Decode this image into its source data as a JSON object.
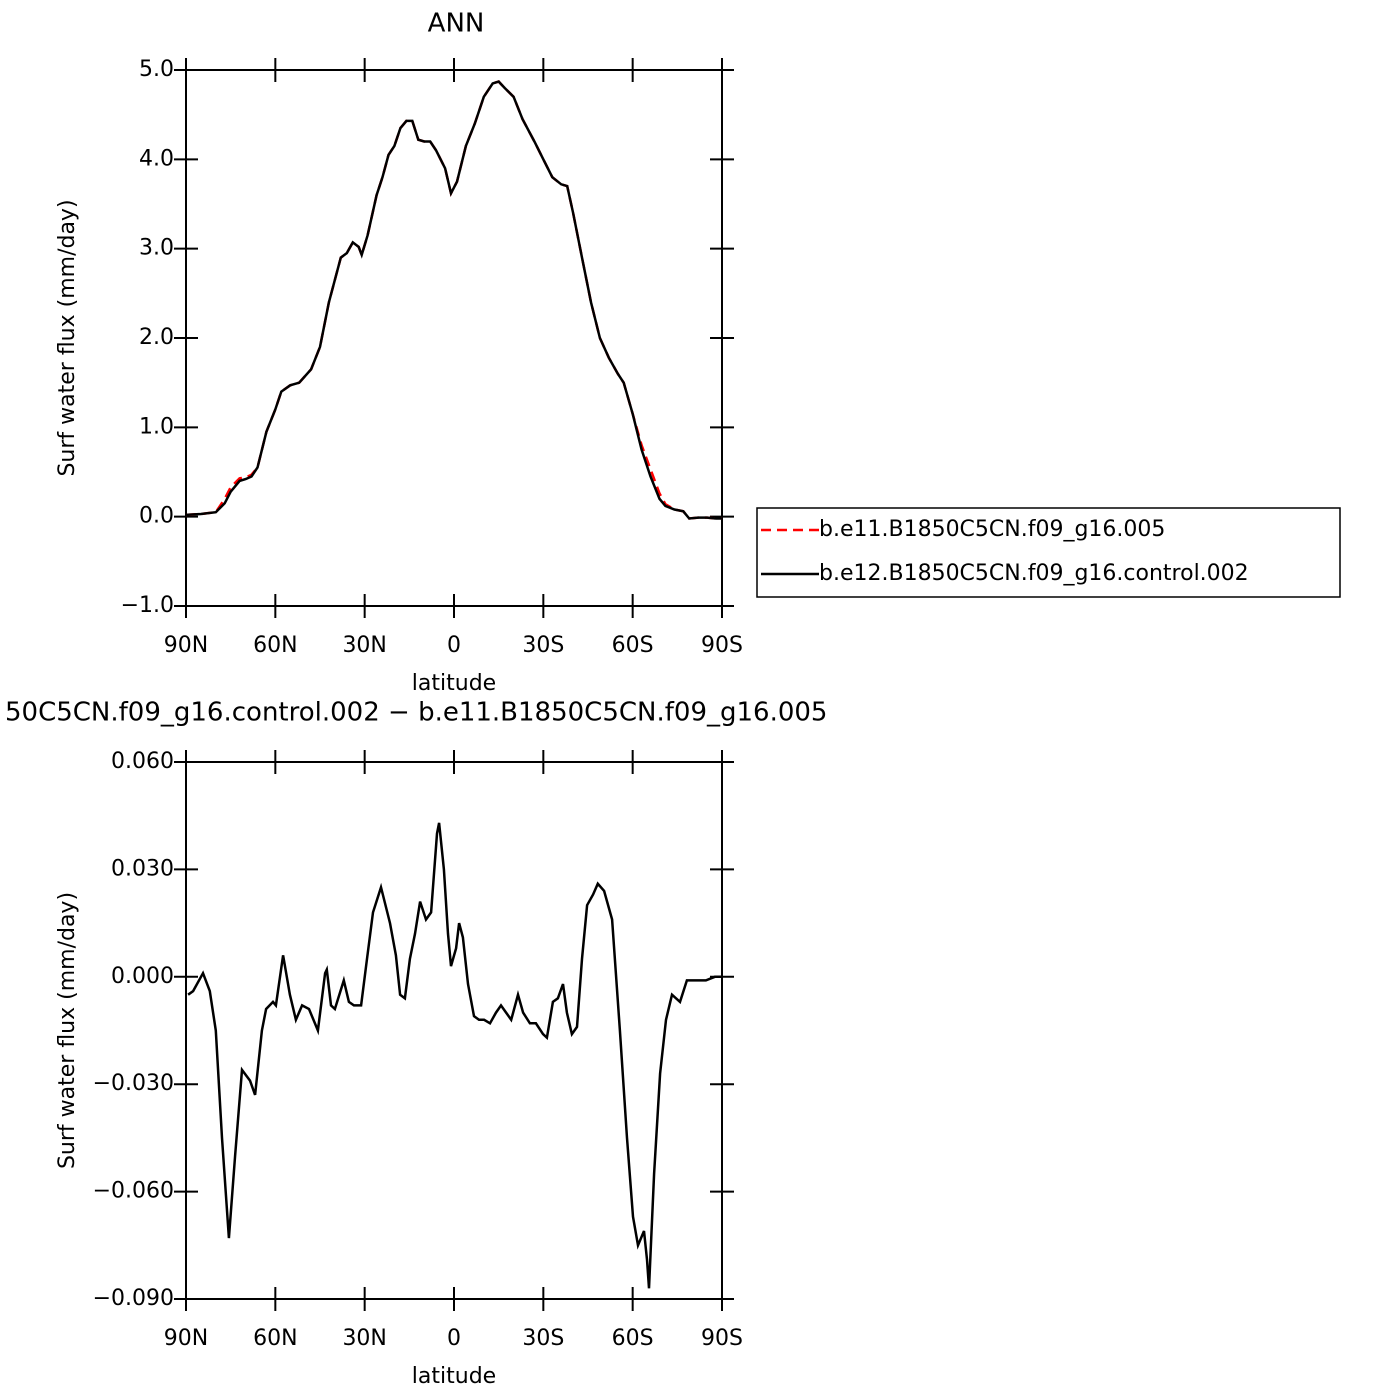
{
  "chart_data": [
    {
      "type": "line",
      "title": "ANN",
      "xlabel": "latitude",
      "ylabel": "Surf water flux (mm/day)",
      "xlim": [
        90,
        -90
      ],
      "xticks": [
        {
          "value": 90,
          "label": "90N"
        },
        {
          "value": 60,
          "label": "60N"
        },
        {
          "value": 30,
          "label": "30N"
        },
        0,
        {
          "value": -30,
          "label": "30S"
        },
        {
          "value": -60,
          "label": "60S"
        },
        {
          "value": -90,
          "label": "90S"
        }
      ],
      "ylim": [
        -1,
        5
      ],
      "yticks": [
        {
          "value": -1,
          "label": "−1.0"
        },
        {
          "value": 0,
          "label": "0.0"
        },
        {
          "value": 1,
          "label": "1.0"
        },
        {
          "value": 2,
          "label": "2.0"
        },
        {
          "value": 3,
          "label": "3.0"
        },
        {
          "value": 4,
          "label": "4.0"
        },
        {
          "value": 5,
          "label": "5.0"
        }
      ],
      "legend": "outside right",
      "x": [
        90,
        85,
        80,
        77,
        75,
        72,
        70,
        68,
        66,
        63,
        60,
        58,
        55,
        52,
        48,
        45,
        42,
        38,
        36,
        34,
        32,
        31,
        29,
        26,
        24,
        22,
        20,
        18,
        16,
        14,
        12,
        10,
        8,
        6,
        3,
        1,
        -1,
        -4,
        -7,
        -10,
        -13,
        -15,
        -17,
        -20,
        -23,
        -27,
        -30,
        -33,
        -36,
        -38,
        -40,
        -43,
        -46,
        -49,
        -52,
        -55,
        -57,
        -60,
        -63,
        -66,
        -69,
        -71,
        -74,
        -77,
        -79,
        -82,
        -85,
        -88,
        -90
      ],
      "series": [
        {
          "name": "b.e11.B1850C5CN.f09_g16.005",
          "color": "#ff0000",
          "dashed": true,
          "values": [
            0.02,
            0.03,
            0.05,
            0.2,
            0.33,
            0.43,
            0.44,
            0.47,
            0.55,
            0.95,
            1.2,
            1.4,
            1.47,
            1.5,
            1.65,
            1.9,
            2.4,
            2.9,
            2.95,
            3.07,
            3.02,
            2.93,
            3.15,
            3.6,
            3.8,
            4.05,
            4.15,
            4.35,
            4.43,
            4.43,
            4.22,
            4.2,
            4.2,
            4.1,
            3.9,
            3.62,
            3.75,
            4.15,
            4.4,
            4.7,
            4.85,
            4.87,
            4.8,
            4.7,
            4.45,
            4.2,
            4.0,
            3.8,
            3.72,
            3.7,
            3.4,
            2.9,
            2.4,
            2.0,
            1.78,
            1.6,
            1.5,
            1.15,
            0.8,
            0.53,
            0.26,
            0.14,
            0.08,
            0.06,
            -0.02,
            -0.01,
            -0.01,
            -0.02,
            -0.02
          ]
        },
        {
          "name": "b.e12.B1850C5CN.f09_g16.control.002",
          "color": "#000000",
          "dashed": false,
          "values": [
            0.02,
            0.03,
            0.05,
            0.15,
            0.28,
            0.4,
            0.42,
            0.45,
            0.55,
            0.95,
            1.2,
            1.4,
            1.47,
            1.5,
            1.65,
            1.9,
            2.4,
            2.9,
            2.95,
            3.07,
            3.02,
            2.93,
            3.15,
            3.6,
            3.8,
            4.05,
            4.15,
            4.35,
            4.43,
            4.43,
            4.22,
            4.2,
            4.2,
            4.1,
            3.9,
            3.62,
            3.75,
            4.15,
            4.4,
            4.7,
            4.85,
            4.87,
            4.8,
            4.7,
            4.45,
            4.2,
            4.0,
            3.8,
            3.72,
            3.7,
            3.4,
            2.9,
            2.4,
            2.0,
            1.78,
            1.6,
            1.5,
            1.15,
            0.75,
            0.45,
            0.2,
            0.12,
            0.08,
            0.06,
            -0.02,
            -0.01,
            -0.01,
            -0.02,
            -0.02
          ]
        }
      ]
    },
    {
      "type": "line",
      "title": "50C5CN.f09_g16.control.002 − b.e11.B1850C5CN.f09_g16.005",
      "xlabel": "latitude",
      "ylabel": "Surf water flux (mm/day)",
      "xlim": [
        90,
        -90
      ],
      "xticks": [
        {
          "value": 90,
          "label": "90N"
        },
        {
          "value": 60,
          "label": "60N"
        },
        {
          "value": 30,
          "label": "30N"
        },
        0,
        {
          "value": -30,
          "label": "30S"
        },
        {
          "value": -60,
          "label": "60S"
        },
        {
          "value": -90,
          "label": "90S"
        }
      ],
      "ylim": [
        -0.09,
        0.06
      ],
      "yticks": [
        {
          "value": -0.09,
          "label": "−0.090"
        },
        {
          "value": -0.06,
          "label": "−0.060"
        },
        {
          "value": -0.03,
          "label": "−0.030"
        },
        {
          "value": 0,
          "label": "0.000"
        },
        {
          "value": 0.03,
          "label": "0.030"
        },
        {
          "value": 0.06,
          "label": "0.060"
        }
      ],
      "color": "#000000",
      "x": [
        89.3,
        87.6,
        84.3,
        82,
        80,
        77.9,
        75.6,
        73.5,
        71.2,
        68.5,
        66.8,
        64.5,
        63.1,
        60.8,
        59.8,
        57.4,
        55.1,
        53.1,
        51,
        48.7,
        45.7,
        43.3,
        42.7,
        41.3,
        40,
        37,
        35.3,
        33.6,
        31.2,
        29.2,
        27.2,
        24.5,
        21.5,
        19.5,
        18.1,
        16.5,
        14.8,
        13.1,
        11.4,
        9.4,
        7.7,
        5.7,
        5,
        3.4,
        2,
        1,
        -0.7,
        -1.7,
        -3,
        -4.7,
        -6.7,
        -8.4,
        -10.1,
        -12.1,
        -14.1,
        -15.8,
        -17.5,
        -19.2,
        -21.5,
        -23.2,
        -25.5,
        -27.5,
        -29.9,
        -31.2,
        -33.2,
        -34.9,
        -36.6,
        -37.9,
        -39.6,
        -41.3,
        -43,
        -44.7,
        -46.7,
        -48.3,
        -50.4,
        -53.1,
        -55.7,
        -58.1,
        -60.1,
        -61.8,
        -63.8,
        -64.8,
        -65.5,
        -67.2,
        -69.2,
        -71.2,
        -73.2,
        -75.9,
        -78.2,
        -80.9,
        -84.6,
        -87.6,
        -90
      ],
      "values": [
        -0.005,
        -0.004,
        0.001,
        -0.004,
        -0.015,
        -0.045,
        -0.073,
        -0.05,
        -0.026,
        -0.029,
        -0.033,
        -0.015,
        -0.009,
        -0.007,
        -0.008,
        0.006,
        -0.005,
        -0.012,
        -0.008,
        -0.009,
        -0.015,
        0.001,
        0.002,
        -0.008,
        -0.009,
        -0.001,
        -0.007,
        -0.008,
        -0.008,
        0.005,
        0.018,
        0.025,
        0.015,
        0.006,
        -0.005,
        -0.006,
        0.005,
        0.012,
        0.021,
        0.016,
        0.018,
        0.04,
        0.043,
        0.03,
        0.012,
        0.003,
        0.008,
        0.015,
        0.011,
        -0.002,
        -0.011,
        -0.012,
        -0.012,
        -0.013,
        -0.01,
        -0.008,
        -0.01,
        -0.012,
        -0.005,
        -0.01,
        -0.013,
        -0.013,
        -0.016,
        -0.017,
        -0.007,
        -0.006,
        -0.002,
        -0.01,
        -0.016,
        -0.014,
        0.005,
        0.02,
        0.023,
        0.026,
        0.024,
        0.016,
        -0.015,
        -0.045,
        -0.067,
        -0.075,
        -0.071,
        -0.079,
        -0.087,
        -0.055,
        -0.027,
        -0.012,
        -0.005,
        -0.007,
        -0.001,
        -0.001,
        -0.001,
        0,
        0
      ]
    }
  ]
}
